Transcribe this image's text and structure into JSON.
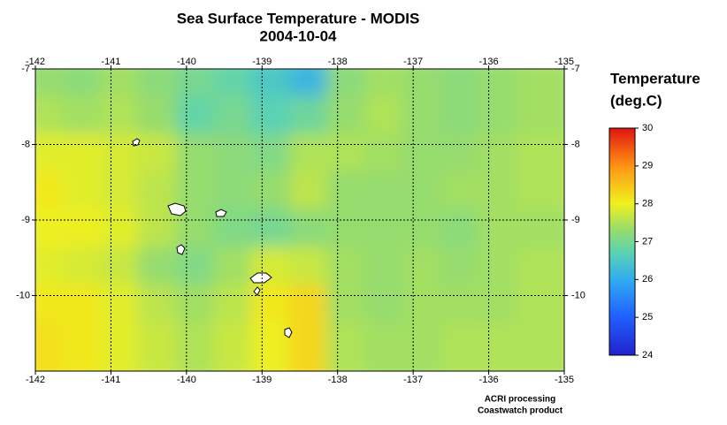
{
  "chart_data": {
    "type": "heatmap",
    "title": "Sea Surface Temperature - MODIS",
    "subtitle": "2004-10-04",
    "xlim": [
      -142,
      -135
    ],
    "ylim": [
      -11,
      -7
    ],
    "xticks": [
      -142,
      -141,
      -140,
      -139,
      -138,
      -137,
      -136,
      -135
    ],
    "yticks": [
      -10,
      -9,
      -8,
      -7
    ],
    "grid": true,
    "values": [
      [
        27.3,
        27.2,
        27.4,
        27.2,
        27.0,
        26.8,
        26.5,
        26.2,
        27.2,
        27.4,
        27.3,
        27.2,
        27.3,
        27.4
      ],
      [
        27.5,
        27.4,
        27.5,
        27.3,
        26.8,
        27.0,
        26.7,
        26.9,
        27.3,
        27.5,
        27.3,
        27.2,
        27.3,
        27.4
      ],
      [
        27.9,
        27.9,
        27.8,
        27.7,
        27.3,
        27.2,
        27.1,
        27.5,
        27.5,
        27.4,
        27.3,
        27.3,
        27.4,
        27.5
      ],
      [
        28.1,
        27.9,
        27.8,
        27.6,
        27.3,
        27.2,
        27.3,
        27.6,
        27.3,
        27.3,
        27.3,
        27.4,
        27.4,
        27.5
      ],
      [
        28.0,
        28.0,
        27.9,
        27.6,
        27.3,
        27.1,
        27.0,
        27.2,
        27.3,
        27.3,
        27.3,
        27.2,
        27.4,
        27.4
      ],
      [
        27.9,
        27.8,
        27.7,
        27.3,
        27.1,
        27.4,
        27.8,
        27.7,
        27.4,
        27.3,
        27.4,
        27.3,
        27.4,
        27.5
      ],
      [
        28.1,
        28.1,
        27.9,
        27.6,
        27.4,
        27.6,
        28.1,
        28.3,
        27.4,
        27.3,
        27.4,
        27.4,
        27.4,
        27.5
      ],
      [
        28.2,
        28.1,
        27.9,
        27.7,
        27.5,
        27.7,
        28.0,
        28.3,
        27.5,
        27.4,
        27.4,
        27.5,
        27.5,
        27.5
      ]
    ],
    "colorbar": {
      "title": [
        "Temperature",
        "(deg.C)"
      ],
      "lim": [
        24,
        30
      ],
      "ticks": [
        24,
        25,
        26,
        27,
        28,
        29,
        30
      ]
    },
    "credits": [
      "ACRI processing",
      "Coastwatch product"
    ]
  }
}
